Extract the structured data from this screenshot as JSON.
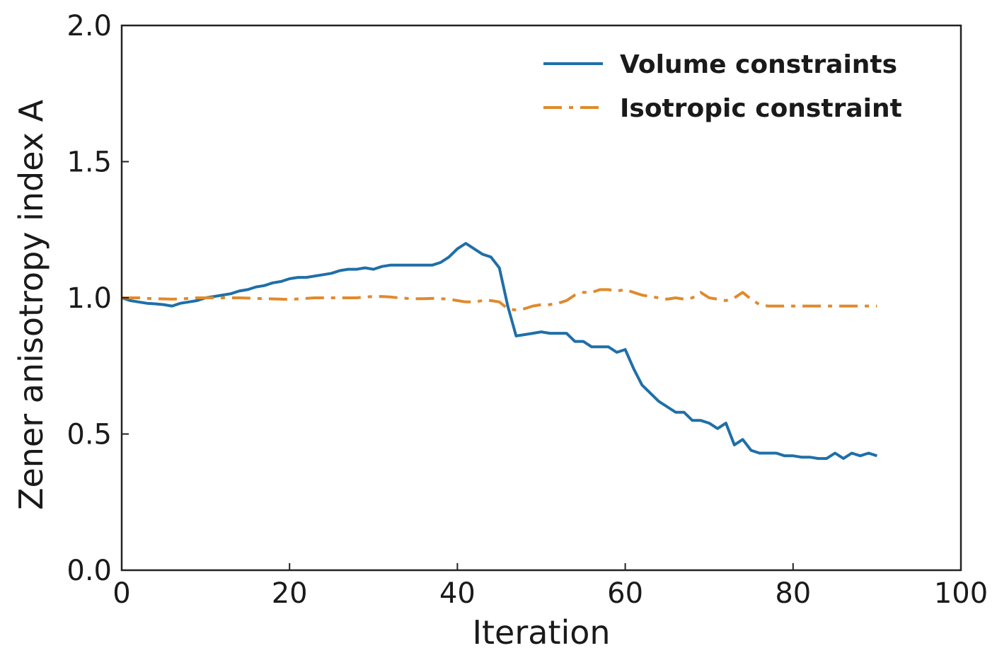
{
  "chart_data": {
    "type": "line",
    "title": "",
    "xlabel": "Iteration",
    "ylabel": "Zener anisotropy index A",
    "xlim": [
      0,
      100
    ],
    "ylim": [
      0,
      2.0
    ],
    "xticks": [
      0,
      20,
      40,
      60,
      80,
      100
    ],
    "xtick_labels": [
      "0",
      "20",
      "40",
      "60",
      "80",
      "100"
    ],
    "yticks": [
      0,
      0.5,
      1.0,
      1.5,
      2.0
    ],
    "ytick_labels": [
      "0.0",
      "0.5",
      "1.0",
      "1.5",
      "2.0"
    ],
    "grid": false,
    "legend_position": "top-right",
    "series": [
      {
        "name": "Volume constraints",
        "color": "#1f6fa8",
        "style": "solid",
        "x": [
          0,
          1,
          2,
          3,
          4,
          5,
          6,
          7,
          8,
          9,
          10,
          11,
          12,
          13,
          14,
          15,
          16,
          17,
          18,
          19,
          20,
          21,
          22,
          23,
          24,
          25,
          26,
          27,
          28,
          29,
          30,
          31,
          32,
          33,
          34,
          35,
          36,
          37,
          38,
          39,
          40,
          41,
          42,
          43,
          44,
          45,
          46,
          47,
          48,
          49,
          50,
          51,
          52,
          53,
          54,
          55,
          56,
          57,
          58,
          59,
          60,
          61,
          62,
          63,
          64,
          65,
          66,
          67,
          68,
          69,
          70,
          71,
          72,
          73,
          74,
          75,
          76,
          77,
          78,
          79,
          80,
          81,
          82,
          83,
          84,
          85,
          86,
          87,
          88,
          89,
          90
        ],
        "values": [
          1.0,
          0.99,
          0.985,
          0.98,
          0.978,
          0.975,
          0.97,
          0.98,
          0.985,
          0.99,
          1.0,
          1.005,
          1.01,
          1.015,
          1.025,
          1.03,
          1.04,
          1.045,
          1.055,
          1.06,
          1.07,
          1.075,
          1.075,
          1.08,
          1.085,
          1.09,
          1.1,
          1.105,
          1.105,
          1.11,
          1.105,
          1.115,
          1.12,
          1.12,
          1.12,
          1.12,
          1.12,
          1.12,
          1.13,
          1.15,
          1.18,
          1.2,
          1.18,
          1.16,
          1.15,
          1.11,
          0.97,
          0.86,
          0.865,
          0.87,
          0.875,
          0.87,
          0.87,
          0.87,
          0.84,
          0.84,
          0.82,
          0.82,
          0.82,
          0.8,
          0.81,
          0.74,
          0.68,
          0.65,
          0.62,
          0.6,
          0.58,
          0.58,
          0.55,
          0.55,
          0.54,
          0.52,
          0.54,
          0.46,
          0.48,
          0.44,
          0.43,
          0.43,
          0.43,
          0.42,
          0.42,
          0.415,
          0.415,
          0.41,
          0.41,
          0.43,
          0.41,
          0.43,
          0.42,
          0.43,
          0.42
        ]
      },
      {
        "name": "Isotropic constraint",
        "color": "#e08a2c",
        "style": "dashdot",
        "x": [
          0,
          1,
          2,
          3,
          4,
          5,
          6,
          7,
          8,
          9,
          10,
          11,
          12,
          13,
          14,
          15,
          16,
          17,
          18,
          19,
          20,
          21,
          22,
          23,
          24,
          25,
          26,
          27,
          28,
          29,
          30,
          31,
          32,
          33,
          34,
          35,
          36,
          37,
          38,
          39,
          40,
          41,
          42,
          43,
          44,
          45,
          46,
          47,
          48,
          49,
          50,
          51,
          52,
          53,
          54,
          55,
          56,
          57,
          58,
          59,
          60,
          61,
          62,
          63,
          64,
          65,
          66,
          67,
          68,
          69,
          70,
          71,
          72,
          73,
          74,
          75,
          76,
          77,
          78,
          79,
          80,
          81,
          82,
          83,
          84,
          85,
          86,
          87,
          88,
          89,
          90
        ],
        "values": [
          1.0,
          1.0,
          1.0,
          0.998,
          0.997,
          0.996,
          0.995,
          0.996,
          0.998,
          1.0,
          1.0,
          1.0,
          1.0,
          1.0,
          1.0,
          0.999,
          0.998,
          0.997,
          0.996,
          0.995,
          0.994,
          0.996,
          0.998,
          1.0,
          1.0,
          1.0,
          1.0,
          1.0,
          1.0,
          1.003,
          1.005,
          1.005,
          1.003,
          1.0,
          0.998,
          0.997,
          0.997,
          0.998,
          0.997,
          0.995,
          0.99,
          0.985,
          0.985,
          0.99,
          0.99,
          0.985,
          0.96,
          0.955,
          0.96,
          0.97,
          0.975,
          0.975,
          0.98,
          0.99,
          1.01,
          1.02,
          1.02,
          1.03,
          1.03,
          1.025,
          1.03,
          1.02,
          1.01,
          1.005,
          1.0,
          0.995,
          1.0,
          0.995,
          1.0,
          1.02,
          1.0,
          0.995,
          0.99,
          1.0,
          1.02,
          0.995,
          0.975,
          0.97,
          0.97,
          0.97,
          0.97,
          0.97,
          0.97,
          0.97,
          0.97,
          0.97,
          0.97,
          0.97,
          0.97,
          0.97,
          0.97
        ]
      }
    ]
  }
}
